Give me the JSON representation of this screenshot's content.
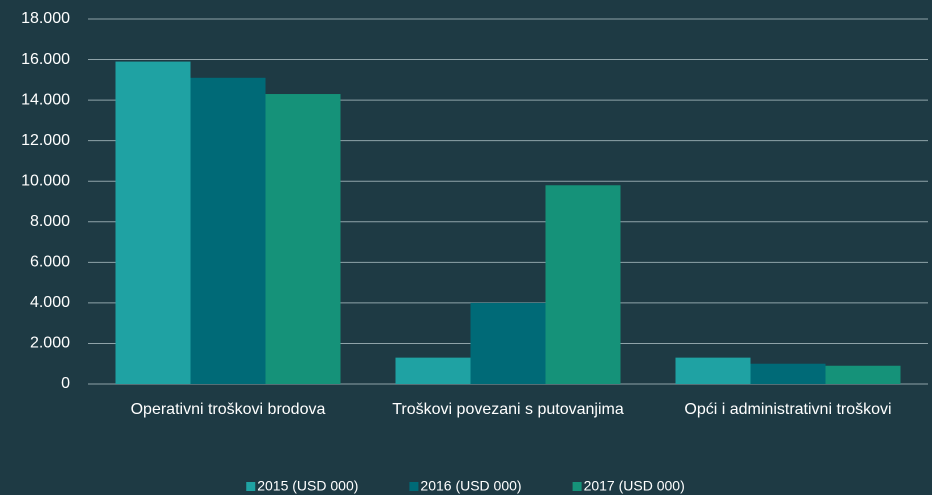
{
  "chart_data": {
    "type": "bar",
    "categories": [
      "Operativni troškovi brodova",
      "Troškovi povezani s putovanjima",
      "Opći i administrativni troškovi"
    ],
    "series": [
      {
        "name": "2015 (USD 000)",
        "color": "#1fa2a3",
        "values": [
          15900,
          1300,
          1300
        ]
      },
      {
        "name": "2016 (USD 000)",
        "color": "#006a77",
        "values": [
          15100,
          4000,
          1000
        ]
      },
      {
        "name": "2017 (USD 000)",
        "color": "#159279",
        "values": [
          14300,
          9800,
          900
        ]
      }
    ],
    "ylim": [
      0,
      18000
    ],
    "yticks": [
      0,
      {
        "value": 2000,
        "label": "2.000"
      },
      {
        "value": 4000,
        "label": "4.000"
      },
      {
        "value": 6000,
        "label": "6.000"
      },
      {
        "value": 8000,
        "label": "8.000"
      },
      {
        "value": 10000,
        "label": "10.000"
      },
      {
        "value": 12000,
        "label": "12.000"
      },
      {
        "value": 14000,
        "label": "14.000"
      },
      {
        "value": 16000,
        "label": "16.000"
      },
      {
        "value": 18000,
        "label": "18.000"
      }
    ],
    "grid": true,
    "legend": "bottom"
  }
}
